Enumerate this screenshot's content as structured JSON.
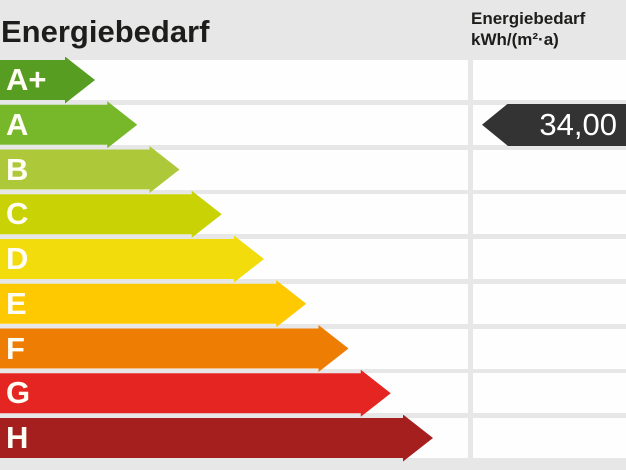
{
  "header": {
    "title": "Energiebedarf",
    "unit_line1": "Energiebedarf",
    "unit_line2": "kWh/(m²·a)"
  },
  "chart_data": {
    "type": "energy-rating-scale",
    "title": "Energiebedarf",
    "unit": "kWh/(m²·a)",
    "categories": [
      "A+",
      "A",
      "B",
      "C",
      "D",
      "E",
      "F",
      "G",
      "H"
    ],
    "band_colors": [
      "#579d22",
      "#77b82b",
      "#adc939",
      "#c9d204",
      "#f2dc0c",
      "#fec901",
      "#ee7d04",
      "#e52521",
      "#a51f1f"
    ],
    "row_background": "#fefefe",
    "page_background": "#e7e7e7",
    "marker": {
      "value": 34.0,
      "value_display": "34,00",
      "band": "A",
      "color": "#333333",
      "text_color": "#ffffff"
    },
    "legend_position": "none",
    "grid": "horizontal-bands"
  }
}
